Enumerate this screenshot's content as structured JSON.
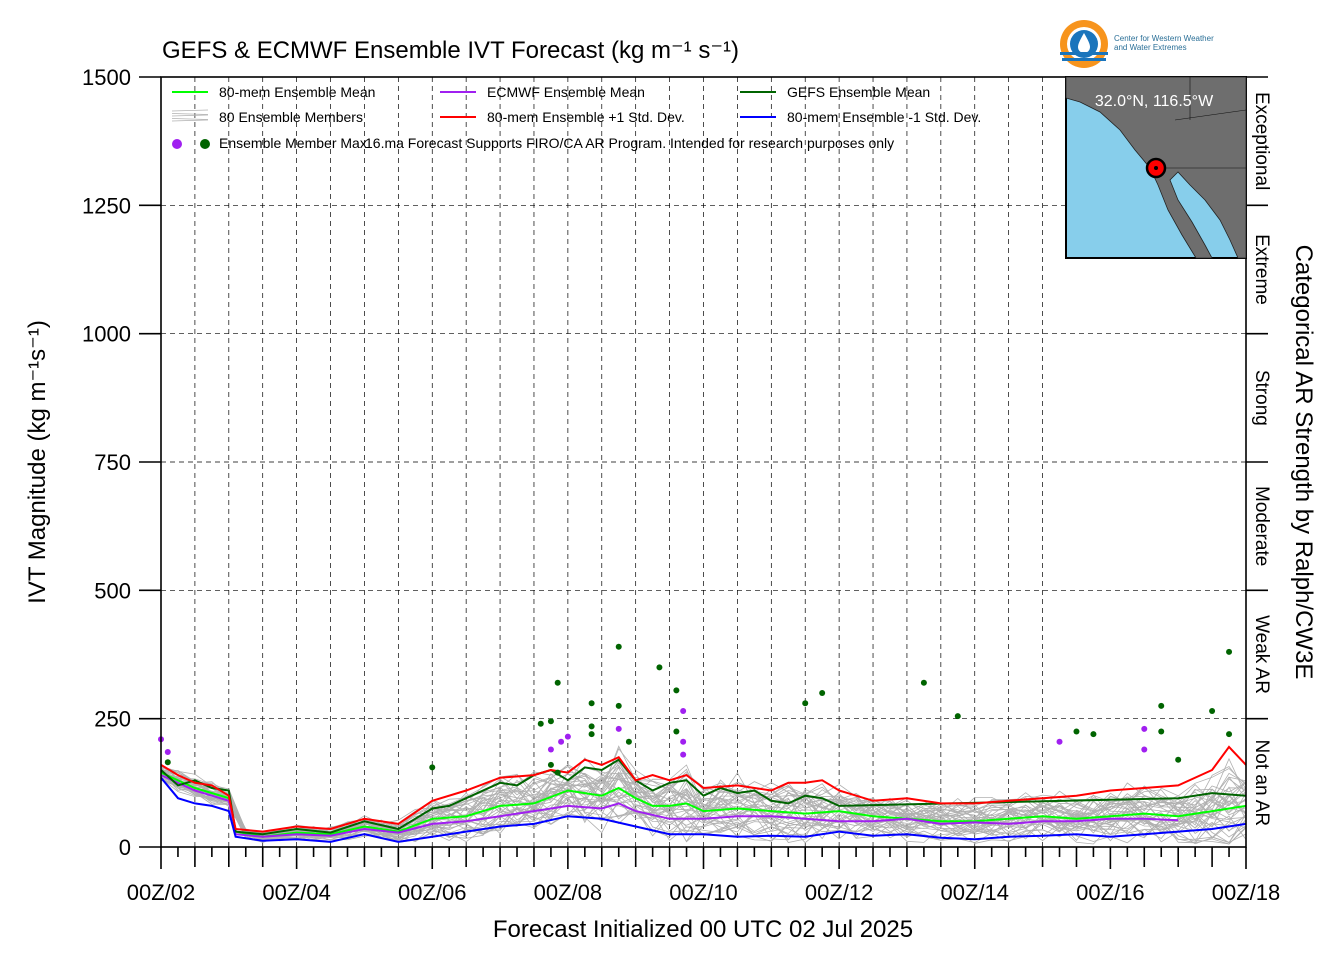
{
  "chart_data": {
    "type": "line",
    "title": "GEFS & ECMWF Ensemble IVT Forecast (kg m⁻¹ s⁻¹)",
    "xlabel": "Forecast Initialized 00 UTC 02 Jul 2025",
    "ylabel": "IVT Magnitude (kg m⁻¹s⁻¹)",
    "right_label": "Categorical AR Strength by Ralph/CW3E",
    "ylim": [
      0,
      1500
    ],
    "xlim_days": [
      2,
      18
    ],
    "yticks": [
      "0",
      "250",
      "500",
      "750",
      "1000",
      "1250",
      "1500"
    ],
    "xticks": [
      "00Z/02",
      "00Z/04",
      "00Z/06",
      "00Z/08",
      "00Z/10",
      "00Z/12",
      "00Z/14",
      "00Z/16",
      "00Z/18"
    ],
    "grid": true,
    "categories": [
      {
        "label": "Not an AR",
        "range": [
          0,
          250
        ]
      },
      {
        "label": "Weak AR",
        "range": [
          250,
          500
        ]
      },
      {
        "label": "Moderate",
        "range": [
          500,
          750
        ]
      },
      {
        "label": "Strong",
        "range": [
          750,
          1000
        ]
      },
      {
        "label": "Extreme",
        "range": [
          1000,
          1250
        ]
      },
      {
        "label": "Exceptional",
        "range": [
          1250,
          1500
        ]
      }
    ],
    "legend": {
      "placement": "top-left",
      "entries": [
        {
          "label": "80-mem Ensemble Mean",
          "color": "#00ff00",
          "kind": "line"
        },
        {
          "label": "ECMWF Ensemble Mean",
          "color": "#a020f0",
          "kind": "line"
        },
        {
          "label": "GEFS Ensemble Mean",
          "color": "#006400",
          "kind": "line"
        },
        {
          "label": "80 Ensemble Members",
          "color": "#b0b0b0",
          "kind": "members"
        },
        {
          "label": "80-mem Ensemble +1 Std. Dev.",
          "color": "#ff0000",
          "kind": "line"
        },
        {
          "label": "80-mem Ensemble -1 Std. Dev.",
          "color": "#0000ff",
          "kind": "line"
        }
      ],
      "max_label": "Ensemble Member Max",
      "note": "16.ma Forecast Supports FIRO/CA AR Program. Intended for research purposes only"
    },
    "location": {
      "label": "32.0°N, 116.5°W"
    },
    "logo_text": [
      "Center for Western Weather",
      "and Water Extremes"
    ],
    "series": [
      {
        "name": "80-mem Ensemble Mean",
        "color": "#00ff00",
        "x": [
          2.0,
          2.5,
          3.0,
          3.1,
          3.5,
          4.0,
          4.5,
          5.0,
          5.5,
          6.0,
          6.5,
          7.0,
          7.5,
          8.0,
          8.5,
          8.75,
          9.0,
          9.25,
          9.5,
          9.75,
          10.0,
          10.5,
          11.0,
          11.5,
          12.0,
          12.5,
          13.0,
          13.5,
          14.0,
          14.5,
          15.0,
          15.5,
          16.0,
          16.5,
          17.0,
          17.5,
          18.0
        ],
        "y": [
          145,
          115,
          95,
          30,
          20,
          28,
          25,
          40,
          30,
          55,
          60,
          80,
          85,
          110,
          100,
          115,
          95,
          80,
          80,
          85,
          70,
          75,
          70,
          65,
          70,
          60,
          55,
          50,
          50,
          55,
          60,
          55,
          60,
          65,
          60,
          70,
          80
        ]
      },
      {
        "name": "ECMWF Ensemble Mean",
        "color": "#a020f0",
        "x": [
          2.0,
          2.5,
          3.0,
          3.1,
          3.5,
          4.0,
          4.5,
          5.0,
          5.5,
          6.0,
          6.5,
          7.0,
          7.5,
          8.0,
          8.5,
          8.75,
          9.0,
          9.5,
          10.0,
          10.5,
          11.0,
          11.5,
          12.0,
          12.5,
          13.0,
          13.5,
          14.0,
          14.5,
          15.0,
          15.5,
          16.0,
          16.5,
          17.0
        ],
        "y": [
          140,
          110,
          90,
          25,
          20,
          25,
          22,
          35,
          28,
          45,
          50,
          60,
          70,
          80,
          75,
          85,
          70,
          55,
          55,
          60,
          60,
          55,
          50,
          50,
          55,
          45,
          48,
          45,
          50,
          50,
          55,
          55,
          52
        ]
      },
      {
        "name": "GEFS Ensemble Mean",
        "color": "#006400",
        "x": [
          2.0,
          2.25,
          2.5,
          2.75,
          3.0,
          3.1,
          3.5,
          4.0,
          4.5,
          5.0,
          5.5,
          6.0,
          6.25,
          6.5,
          7.0,
          7.25,
          7.5,
          7.75,
          8.0,
          8.25,
          8.5,
          8.75,
          9.0,
          9.25,
          9.5,
          9.75,
          10.0,
          10.25,
          10.5,
          10.75,
          11.0,
          11.25,
          11.5,
          11.75,
          12.0,
          17.0,
          17.5,
          18.0
        ],
        "y": [
          150,
          120,
          130,
          115,
          110,
          30,
          25,
          35,
          28,
          50,
          35,
          75,
          80,
          95,
          125,
          120,
          140,
          150,
          130,
          155,
          150,
          170,
          130,
          110,
          125,
          130,
          100,
          115,
          105,
          110,
          90,
          85,
          100,
          95,
          80,
          95,
          105,
          100
        ]
      },
      {
        "name": "80-mem Ensemble +1 Std. Dev.",
        "color": "#ff0000",
        "x": [
          2.0,
          2.25,
          2.5,
          2.75,
          3.0,
          3.1,
          3.5,
          4.0,
          4.5,
          5.0,
          5.5,
          6.0,
          6.5,
          7.0,
          7.5,
          7.75,
          8.0,
          8.25,
          8.5,
          8.75,
          9.0,
          9.25,
          9.5,
          9.75,
          10.0,
          10.5,
          11.0,
          11.25,
          11.5,
          11.75,
          12.0,
          12.5,
          13.0,
          13.5,
          14.0,
          14.5,
          15.0,
          15.5,
          16.0,
          16.5,
          17.0,
          17.5,
          17.75,
          18.0
        ],
        "y": [
          160,
          140,
          125,
          120,
          100,
          35,
          30,
          40,
          35,
          55,
          45,
          90,
          110,
          135,
          140,
          150,
          145,
          170,
          160,
          175,
          130,
          140,
          130,
          140,
          115,
          120,
          110,
          125,
          125,
          130,
          110,
          90,
          95,
          85,
          85,
          90,
          95,
          100,
          110,
          115,
          120,
          150,
          195,
          160
        ]
      },
      {
        "name": "80-mem Ensemble -1 Std. Dev.",
        "color": "#0000ff",
        "x": [
          2.0,
          2.25,
          2.5,
          2.75,
          3.0,
          3.1,
          3.5,
          4.0,
          4.5,
          5.0,
          5.5,
          6.0,
          6.5,
          7.0,
          7.5,
          8.0,
          8.5,
          9.0,
          9.5,
          10.0,
          10.5,
          11.0,
          11.5,
          12.0,
          12.5,
          13.0,
          13.5,
          14.0,
          14.5,
          15.0,
          15.5,
          16.0,
          16.5,
          17.0,
          17.5,
          18.0
        ],
        "y": [
          135,
          95,
          85,
          80,
          70,
          20,
          12,
          15,
          10,
          25,
          10,
          20,
          30,
          40,
          45,
          60,
          55,
          40,
          25,
          25,
          20,
          22,
          20,
          30,
          22,
          25,
          18,
          15,
          20,
          22,
          25,
          20,
          25,
          30,
          35,
          45
        ]
      }
    ],
    "ecmwf_max_points": [
      {
        "x": 2.0,
        "y": 210
      },
      {
        "x": 2.1,
        "y": 185
      },
      {
        "x": 7.75,
        "y": 190
      },
      {
        "x": 7.9,
        "y": 205
      },
      {
        "x": 8.0,
        "y": 215
      },
      {
        "x": 8.75,
        "y": 230
      },
      {
        "x": 9.7,
        "y": 265
      },
      {
        "x": 9.7,
        "y": 205
      },
      {
        "x": 9.7,
        "y": 180
      },
      {
        "x": 15.25,
        "y": 205
      },
      {
        "x": 16.5,
        "y": 230
      },
      {
        "x": 16.5,
        "y": 190
      }
    ],
    "gefs_max_points": [
      {
        "x": 2.1,
        "y": 165
      },
      {
        "x": 6.0,
        "y": 155
      },
      {
        "x": 7.6,
        "y": 240
      },
      {
        "x": 7.75,
        "y": 245
      },
      {
        "x": 7.85,
        "y": 320
      },
      {
        "x": 7.75,
        "y": 160
      },
      {
        "x": 7.85,
        "y": 145
      },
      {
        "x": 8.35,
        "y": 280
      },
      {
        "x": 8.35,
        "y": 235
      },
      {
        "x": 8.35,
        "y": 220
      },
      {
        "x": 8.75,
        "y": 390
      },
      {
        "x": 8.75,
        "y": 275
      },
      {
        "x": 8.9,
        "y": 205
      },
      {
        "x": 9.35,
        "y": 350
      },
      {
        "x": 9.6,
        "y": 305
      },
      {
        "x": 9.6,
        "y": 225
      },
      {
        "x": 11.5,
        "y": 280
      },
      {
        "x": 11.75,
        "y": 300
      },
      {
        "x": 13.25,
        "y": 320
      },
      {
        "x": 13.75,
        "y": 255
      },
      {
        "x": 15.5,
        "y": 225
      },
      {
        "x": 15.75,
        "y": 220
      },
      {
        "x": 16.75,
        "y": 275
      },
      {
        "x": 16.75,
        "y": 225
      },
      {
        "x": 17.0,
        "y": 170
      },
      {
        "x": 17.5,
        "y": 265
      },
      {
        "x": 17.75,
        "y": 380
      },
      {
        "x": 17.75,
        "y": 220
      }
    ]
  }
}
